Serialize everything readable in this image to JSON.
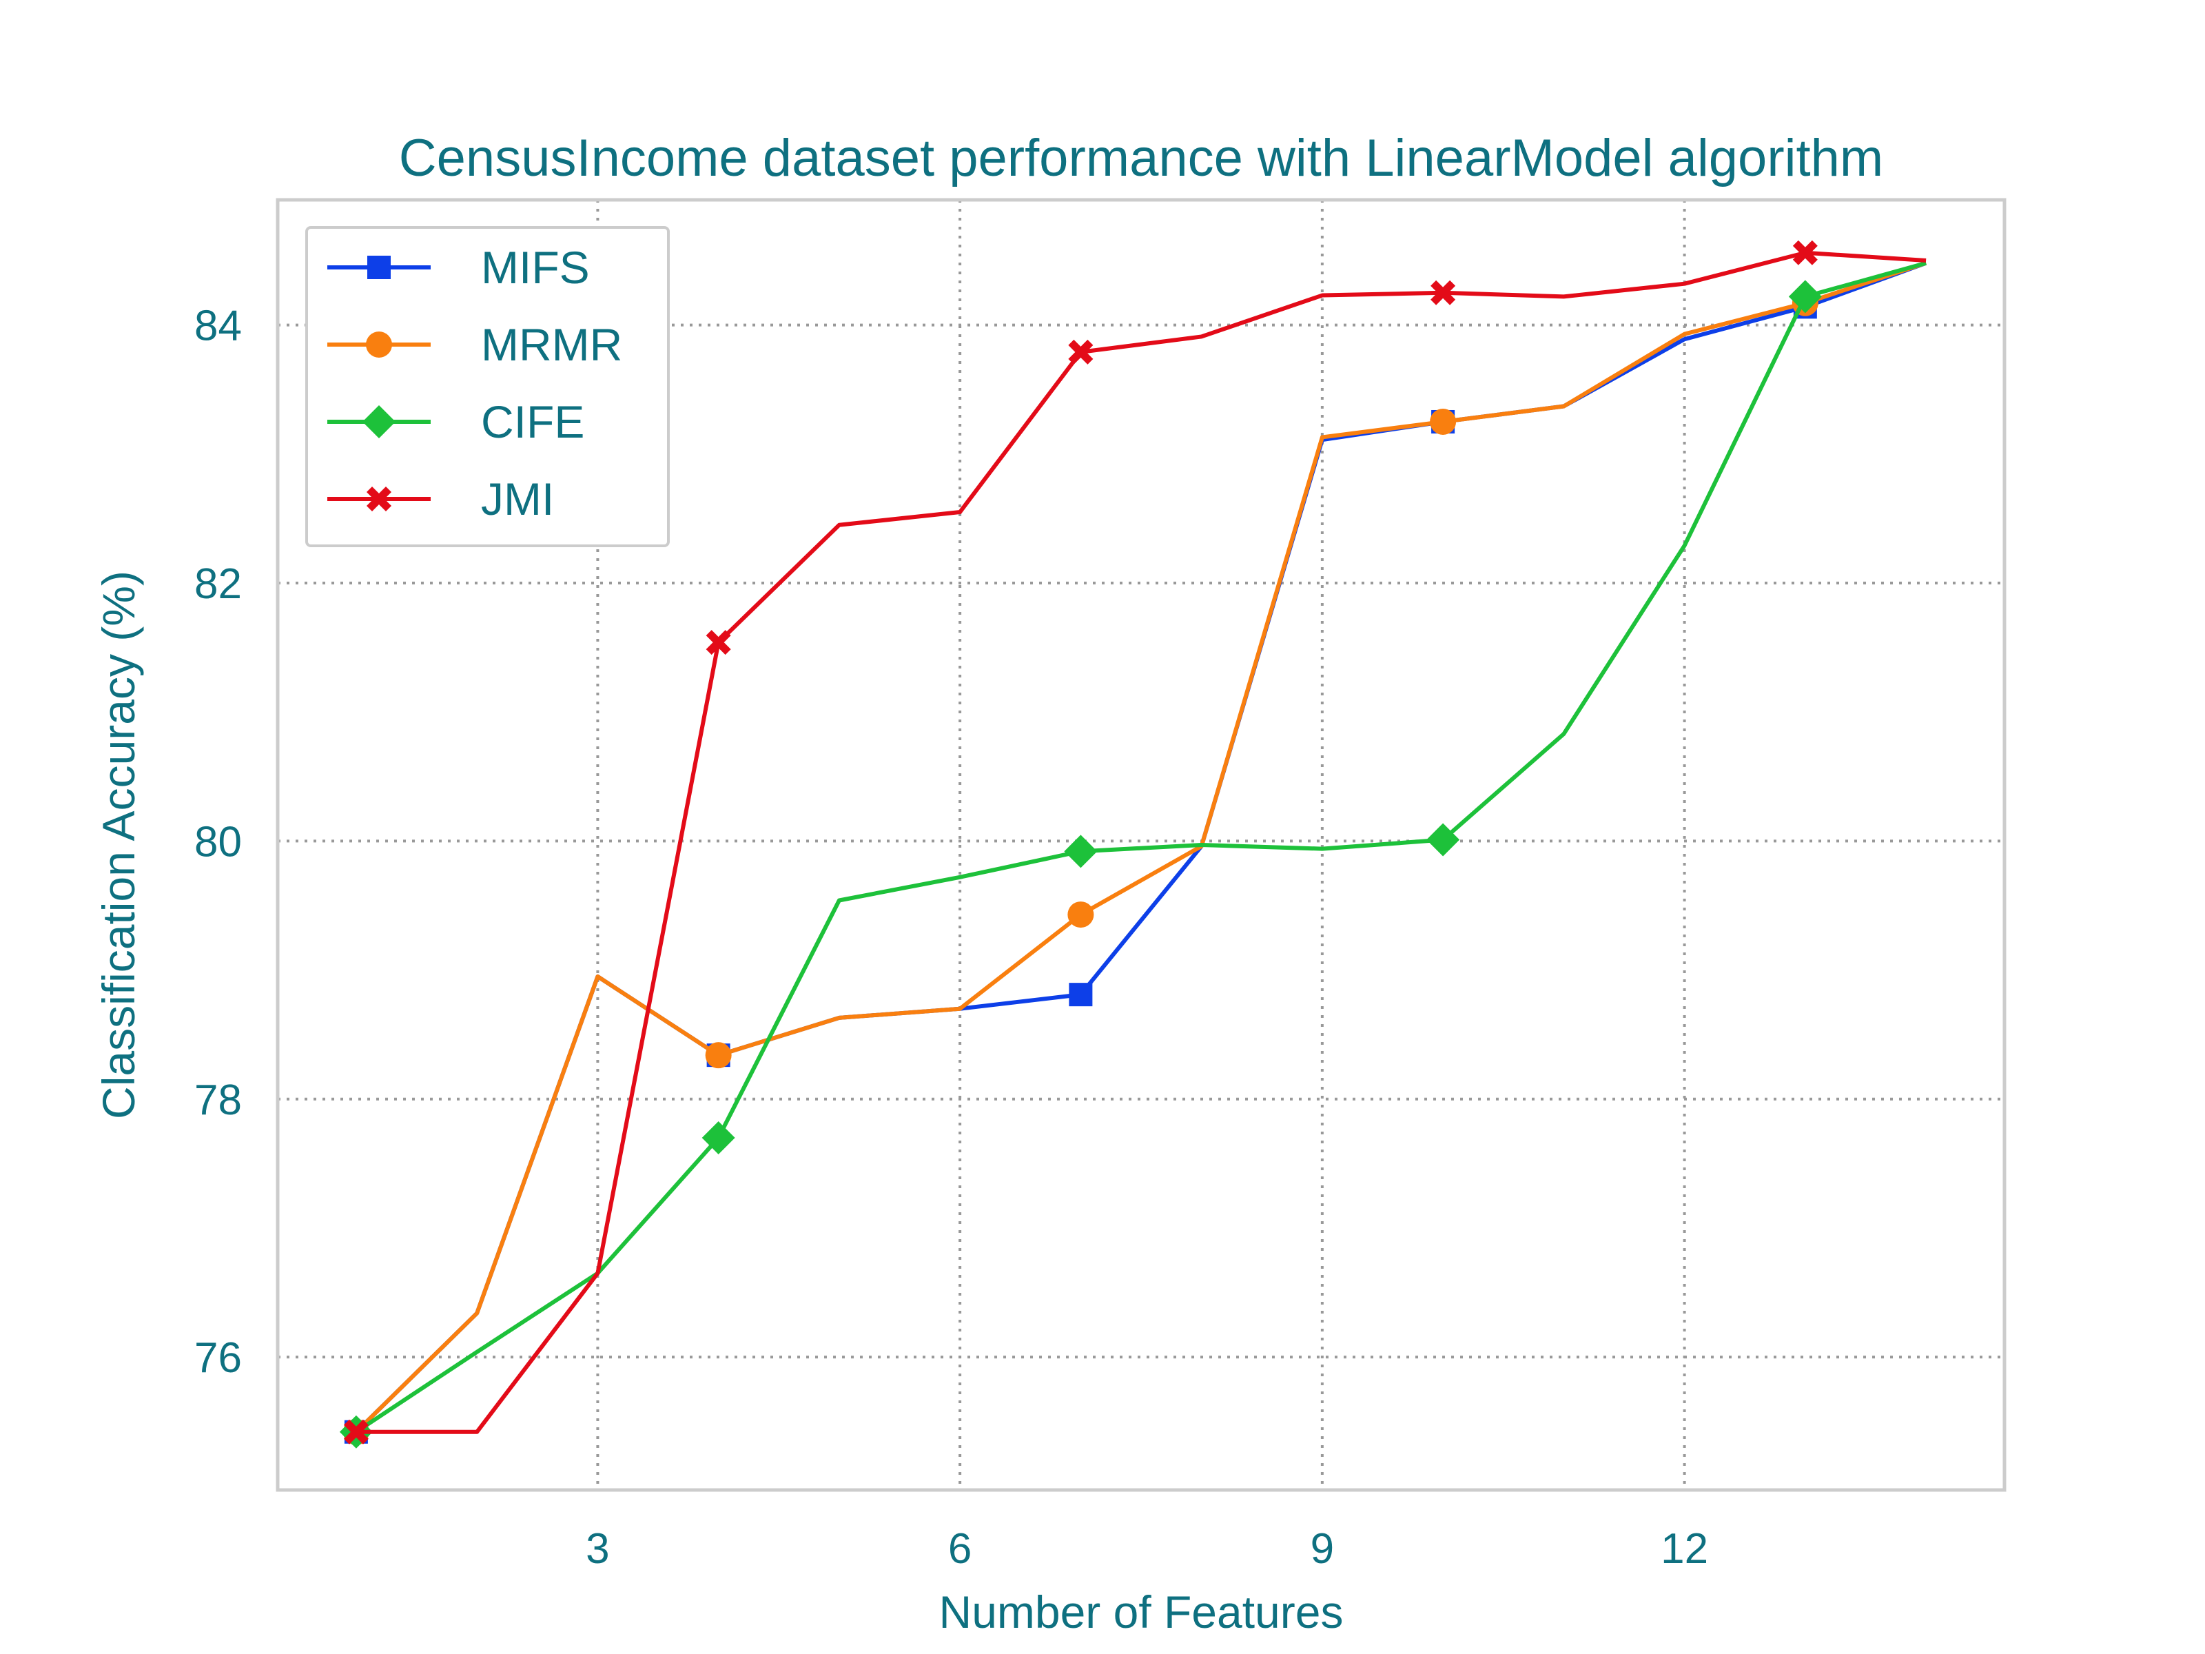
{
  "chart_data": {
    "type": "line",
    "title": "CensusIncome dataset performance with LinearModel algorithm",
    "xlabel": "Number of Features",
    "ylabel": "Classification Accuracy (%)",
    "xlim": [
      0.35,
      14.65
    ],
    "ylim": [
      74.97,
      84.97
    ],
    "xticks": [
      3,
      6,
      9,
      12
    ],
    "yticks": [
      76,
      78,
      80,
      82,
      84
    ],
    "grid": true,
    "grid_style": "dotted",
    "legend_position": "top-left",
    "x": [
      1,
      2,
      3,
      4,
      5,
      6,
      7,
      8,
      9,
      10,
      11,
      12,
      13,
      14
    ],
    "series": [
      {
        "name": "MIFS",
        "color": "#0d3fe8",
        "marker": "square",
        "values": [
          75.42,
          76.34,
          78.95,
          78.34,
          78.63,
          78.7,
          78.81,
          79.96,
          83.11,
          83.25,
          83.37,
          83.89,
          84.14,
          84.48
        ]
      },
      {
        "name": "MRMR",
        "color": "#f97f0f",
        "marker": "circle",
        "values": [
          75.42,
          76.34,
          78.95,
          78.34,
          78.63,
          78.7,
          79.43,
          79.96,
          83.13,
          83.25,
          83.37,
          83.93,
          84.17,
          84.48
        ]
      },
      {
        "name": "CIFE",
        "color": "#1dc13a",
        "marker": "diamond",
        "values": [
          75.42,
          76.04,
          76.65,
          77.7,
          79.54,
          79.72,
          79.92,
          79.97,
          79.94,
          80.01,
          80.83,
          82.29,
          84.22,
          84.48
        ]
      },
      {
        "name": "JMI",
        "color": "#e30b18",
        "marker": "x",
        "values": [
          75.42,
          75.42,
          76.65,
          81.54,
          82.45,
          82.55,
          83.79,
          83.91,
          84.23,
          84.25,
          84.22,
          84.32,
          84.56,
          84.5
        ]
      }
    ],
    "marker_every": [
      1,
      4,
      7,
      10,
      13
    ]
  }
}
